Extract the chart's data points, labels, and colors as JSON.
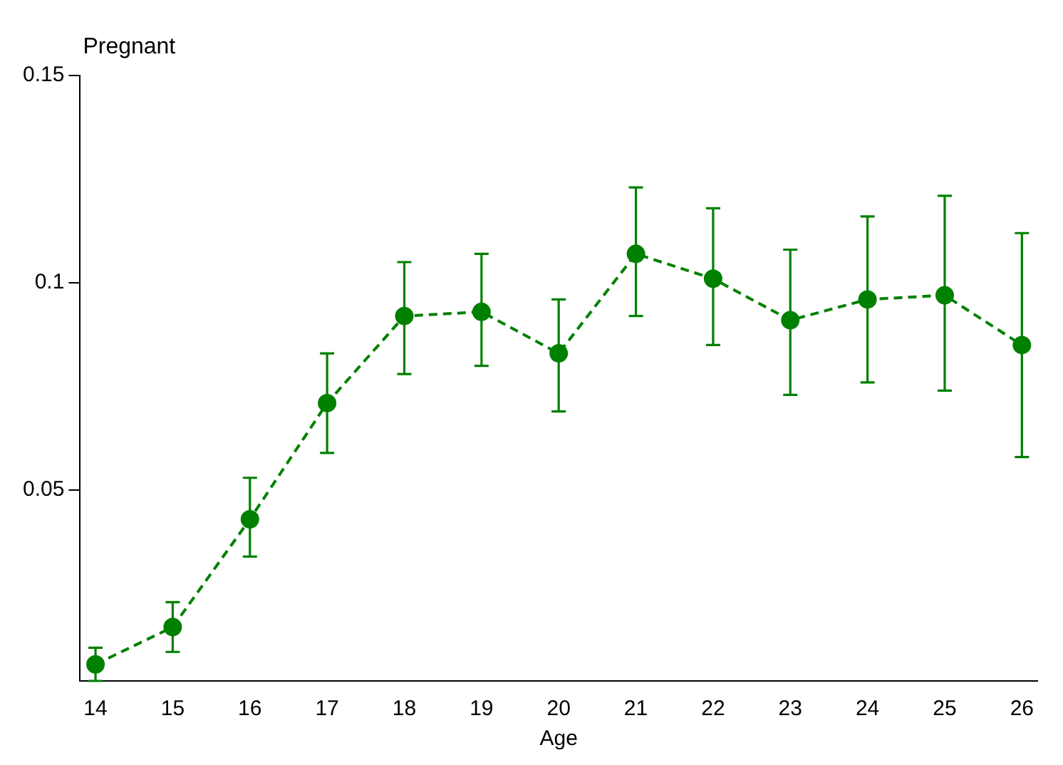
{
  "chart_data": {
    "type": "line",
    "ylabel": "Pregnant",
    "xlabel": "Age",
    "x": [
      14,
      15,
      16,
      17,
      18,
      19,
      20,
      21,
      22,
      23,
      24,
      25,
      26
    ],
    "series": [
      {
        "color": "#008000",
        "values": [
          0.008,
          0.017,
          0.043,
          0.071,
          0.092,
          0.093,
          0.083,
          0.107,
          0.101,
          0.091,
          0.096,
          0.097,
          0.085
        ],
        "errors": [
          [
            0.004,
            0.012
          ],
          [
            0.011,
            0.023
          ],
          [
            0.034,
            0.053
          ],
          [
            0.059,
            0.083
          ],
          [
            0.078,
            0.105
          ],
          [
            0.08,
            0.107
          ],
          [
            0.069,
            0.096
          ],
          [
            0.092,
            0.123
          ],
          [
            0.085,
            0.118
          ],
          [
            0.073,
            0.108
          ],
          [
            0.076,
            0.116
          ],
          [
            0.074,
            0.121
          ],
          [
            0.058,
            0.112
          ]
        ]
      }
    ],
    "xlim": [
      13.8,
      26.2
    ],
    "xticks": [
      14,
      15,
      16,
      17,
      18,
      19,
      20,
      21,
      22,
      23,
      24,
      25,
      26
    ],
    "ylim": [
      0.004,
      0.15
    ],
    "yticks": [
      0.05,
      {
        "value": 0.1,
        "label": "0.1"
      },
      0.15
    ],
    "grid": false,
    "legend": false,
    "marker": "circle",
    "line_style": "dashed"
  }
}
